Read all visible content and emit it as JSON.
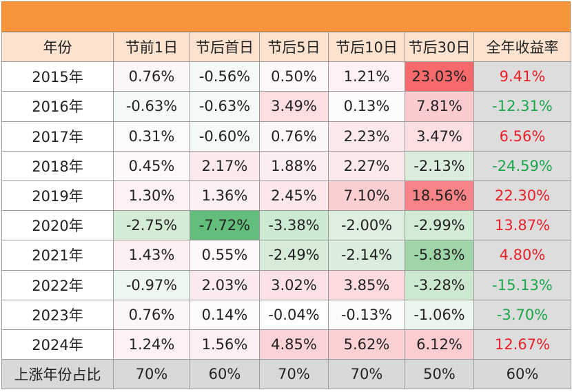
{
  "headers": [
    "年份",
    "节前1日",
    "节后首日",
    "节后5日",
    "节后10日",
    "节后30日",
    "全年收益率"
  ],
  "rows": [
    {
      "year": "2015年",
      "cells": [
        {
          "v": "0.76%",
          "bg": "#fdf6f8"
        },
        {
          "v": "-0.56%",
          "bg": "#f4faf5"
        },
        {
          "v": "0.50%",
          "bg": "#fdf8fa"
        },
        {
          "v": "1.21%",
          "bg": "#fdf1f3"
        },
        {
          "v": "23.03%",
          "bg": "#f8696b"
        },
        {
          "v": "9.41%",
          "c": "red",
          "bg": "#dddddd"
        }
      ]
    },
    {
      "year": "2016年",
      "cells": [
        {
          "v": "-0.63%",
          "bg": "#f3f9f4"
        },
        {
          "v": "-0.63%",
          "bg": "#f3f9f4"
        },
        {
          "v": "3.49%",
          "bg": "#fcdde0"
        },
        {
          "v": "0.13%",
          "bg": "#fdfbfc"
        },
        {
          "v": "7.81%",
          "bg": "#fbcbce"
        },
        {
          "v": "-12.31%",
          "c": "green",
          "bg": "#dddddd"
        }
      ]
    },
    {
      "year": "2017年",
      "cells": [
        {
          "v": "0.31%",
          "bg": "#fdfafb"
        },
        {
          "v": "-0.60%",
          "bg": "#f3f9f4"
        },
        {
          "v": "0.76%",
          "bg": "#fdf6f8"
        },
        {
          "v": "2.23%",
          "bg": "#fce9ec"
        },
        {
          "v": "3.47%",
          "bg": "#fcdde0"
        },
        {
          "v": "6.56%",
          "c": "red",
          "bg": "#dddddd"
        }
      ]
    },
    {
      "year": "2018年",
      "cells": [
        {
          "v": "0.45%",
          "bg": "#fdf8fa"
        },
        {
          "v": "2.17%",
          "bg": "#fce9ec"
        },
        {
          "v": "1.88%",
          "bg": "#fceef0"
        },
        {
          "v": "2.27%",
          "bg": "#fce9ec"
        },
        {
          "v": "-2.13%",
          "bg": "#dbeedd"
        },
        {
          "v": "-24.59%",
          "c": "green",
          "bg": "#dddddd"
        }
      ]
    },
    {
      "year": "2019年",
      "cells": [
        {
          "v": "1.30%",
          "bg": "#fdf1f3"
        },
        {
          "v": "1.36%",
          "bg": "#fdf0f2"
        },
        {
          "v": "2.45%",
          "bg": "#fce8eb"
        },
        {
          "v": "7.10%",
          "bg": "#fbced1"
        },
        {
          "v": "18.56%",
          "bg": "#f98488"
        },
        {
          "v": "22.30%",
          "c": "red",
          "bg": "#dddddd"
        }
      ]
    },
    {
      "year": "2020年",
      "cells": [
        {
          "v": "-2.75%",
          "bg": "#d4ebd6"
        },
        {
          "v": "-7.72%",
          "bg": "#63be7b"
        },
        {
          "v": "-3.38%",
          "bg": "#ccead1"
        },
        {
          "v": "-2.00%",
          "bg": "#deefe0"
        },
        {
          "v": "-2.99%",
          "bg": "#d1ebd4"
        },
        {
          "v": "13.87%",
          "c": "red",
          "bg": "#dddddd"
        }
      ]
    },
    {
      "year": "2021年",
      "cells": [
        {
          "v": "1.43%",
          "bg": "#fdf0f2"
        },
        {
          "v": "0.55%",
          "bg": "#fdf8fa"
        },
        {
          "v": "-2.49%",
          "bg": "#d6ecd8"
        },
        {
          "v": "-2.14%",
          "bg": "#dbeedd"
        },
        {
          "v": "-5.83%",
          "bg": "#9fd6a9"
        },
        {
          "v": "4.80%",
          "c": "red",
          "bg": "#dddddd"
        }
      ]
    },
    {
      "year": "2022年",
      "cells": [
        {
          "v": "-0.97%",
          "bg": "#eef7ef"
        },
        {
          "v": "2.03%",
          "bg": "#fcebee"
        },
        {
          "v": "3.02%",
          "bg": "#fce2e5"
        },
        {
          "v": "3.85%",
          "bg": "#fcdadd"
        },
        {
          "v": "-3.28%",
          "bg": "#cce9d0"
        },
        {
          "v": "-15.13%",
          "c": "green",
          "bg": "#dddddd"
        }
      ]
    },
    {
      "year": "2023年",
      "cells": [
        {
          "v": "0.76%",
          "bg": "#fdf6f8"
        },
        {
          "v": "0.14%",
          "bg": "#fdfbfc"
        },
        {
          "v": "-0.04%",
          "bg": "#fcfdfc"
        },
        {
          "v": "-0.13%",
          "bg": "#fafcfa"
        },
        {
          "v": "-1.06%",
          "bg": "#ecf6ed"
        },
        {
          "v": "-3.70%",
          "c": "green",
          "bg": "#dddddd"
        }
      ]
    },
    {
      "year": "2024年",
      "cells": [
        {
          "v": "1.24%",
          "bg": "#fdf1f3"
        },
        {
          "v": "1.56%",
          "bg": "#fdeff1"
        },
        {
          "v": "4.85%",
          "bg": "#fbd3d6"
        },
        {
          "v": "5.62%",
          "bg": "#fbd0d3"
        },
        {
          "v": "6.12%",
          "bg": "#fbcdd0"
        },
        {
          "v": "12.67%",
          "c": "red",
          "bg": "#dddddd"
        }
      ]
    }
  ],
  "footer": {
    "label": "上涨年份占比",
    "values": [
      "70%",
      "60%",
      "70%",
      "70%",
      "50%",
      "60%"
    ]
  },
  "colors": {
    "banner": "#f6943c",
    "header_bg": "#fde3cf",
    "positive_text": "#e8202a",
    "negative_text": "#1aa64a",
    "footer_bg": "#d9d9d9"
  }
}
